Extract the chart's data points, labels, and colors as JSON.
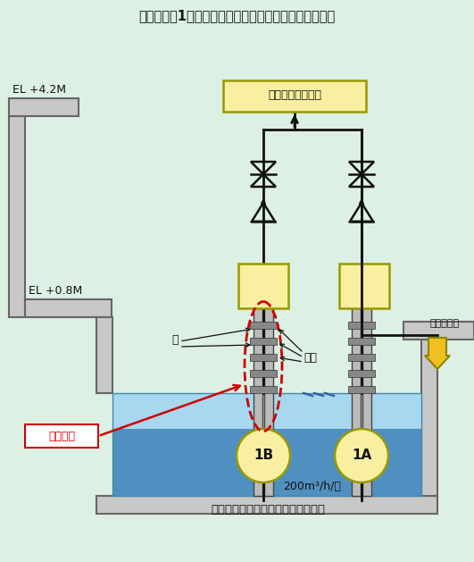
{
  "title": "伊方発電所1号機　タービン建家非常用排水系統概略図",
  "bg_color": "#ddf0e4",
  "wall_fill": "#c8c8c8",
  "wall_edge": "#666666",
  "water_top": "#a8d8f0",
  "water_bot": "#5090c0",
  "pump_fill": "#f8f0a0",
  "pump_edge": "#999900",
  "motor_fill": "#f8f0a0",
  "motor_edge": "#999900",
  "device_fill": "#f8f0a0",
  "device_edge": "#999900",
  "pipe_color": "#111111",
  "shaft_fill": "#bbbbbb",
  "shaft_edge": "#444444",
  "bearing_fill": "#888888",
  "bearing_edge": "#333333",
  "red_color": "#cc0000",
  "yellow_fill": "#f0c020",
  "yellow_edge": "#888800",
  "text_color": "#111111",
  "title_text": "伊方発電所1号機　タービン建家非常用排水系統概略図",
  "device_label": "総合排水処理装置",
  "el42": "EL +4.2M",
  "el08": "EL +0.8M",
  "pump1b": "1B",
  "pump1a": "1A",
  "pit_label": "１号タービン建家非常用排水ピット",
  "flow_label": "200m³/h/台",
  "area_label": "当該箇所",
  "shaft_label": "軸",
  "bearing_label": "軸受",
  "secondary_label": "２次系排水",
  "lw_wall": 1.5,
  "lw_pipe": 2.0,
  "lw_valve": 1.8
}
